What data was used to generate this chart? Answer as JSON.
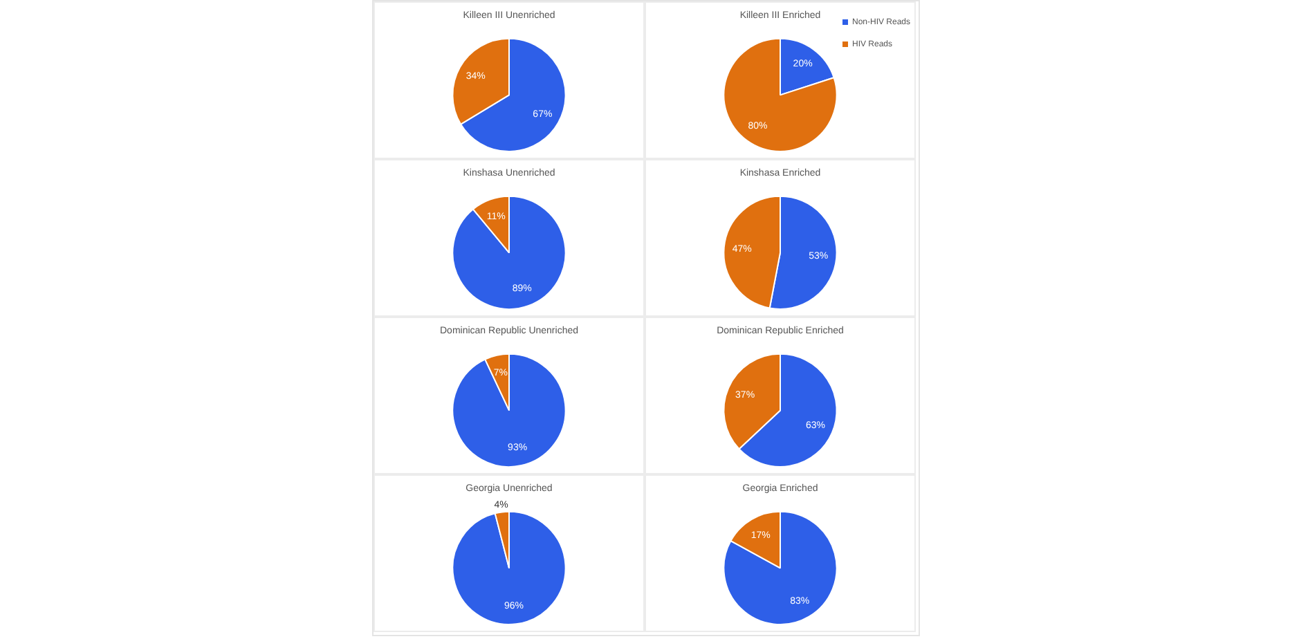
{
  "chart_data": [
    {
      "type": "pie",
      "title": "Killeen III Unenriched",
      "categories": [
        null,
        null
      ],
      "values": [
        67,
        34
      ],
      "colors": [
        "#2e5fe8",
        "#e0700f"
      ],
      "value_labels": [
        "67%",
        "34%"
      ]
    },
    {
      "type": "pie",
      "title": "Killeen III Enriched",
      "categories": [
        "Non-HIV Reads",
        "HIV Reads"
      ],
      "values": [
        20,
        80
      ],
      "colors": [
        "#2e5fe8",
        "#e0700f"
      ],
      "value_labels": [
        "20%",
        "80%"
      ],
      "legend": "top right"
    },
    {
      "type": "pie",
      "title": "Kinshasa Unenriched",
      "categories": [
        null,
        null
      ],
      "values": [
        89,
        11
      ],
      "colors": [
        "#2e5fe8",
        "#e0700f"
      ],
      "value_labels": [
        "89%",
        "11%"
      ]
    },
    {
      "type": "pie",
      "title": "Kinshasa Enriched",
      "categories": [
        null,
        null
      ],
      "values": [
        53,
        47
      ],
      "colors": [
        "#2e5fe8",
        "#e0700f"
      ],
      "value_labels": [
        "53%",
        "47%"
      ]
    },
    {
      "type": "pie",
      "title": "Dominican Republic Unenriched",
      "categories": [
        null,
        null
      ],
      "values": [
        93,
        7
      ],
      "colors": [
        "#2e5fe8",
        "#e0700f"
      ],
      "value_labels": [
        "93%",
        "7%"
      ]
    },
    {
      "type": "pie",
      "title": "Dominican Republic Enriched",
      "categories": [
        null,
        null
      ],
      "values": [
        63,
        37
      ],
      "colors": [
        "#2e5fe8",
        "#e0700f"
      ],
      "value_labels": [
        "63%",
        "37%"
      ]
    },
    {
      "type": "pie",
      "title": "Georgia Unenriched",
      "categories": [
        null,
        null
      ],
      "values": [
        96,
        4
      ],
      "colors": [
        "#2e5fe8",
        "#e0700f"
      ],
      "value_labels": [
        "96%",
        "4%"
      ]
    },
    {
      "type": "pie",
      "title": "Georgia Enriched",
      "categories": [
        null,
        null
      ],
      "values": [
        83,
        17
      ],
      "colors": [
        "#2e5fe8",
        "#e0700f"
      ],
      "value_labels": [
        "83%",
        "17%"
      ]
    }
  ]
}
